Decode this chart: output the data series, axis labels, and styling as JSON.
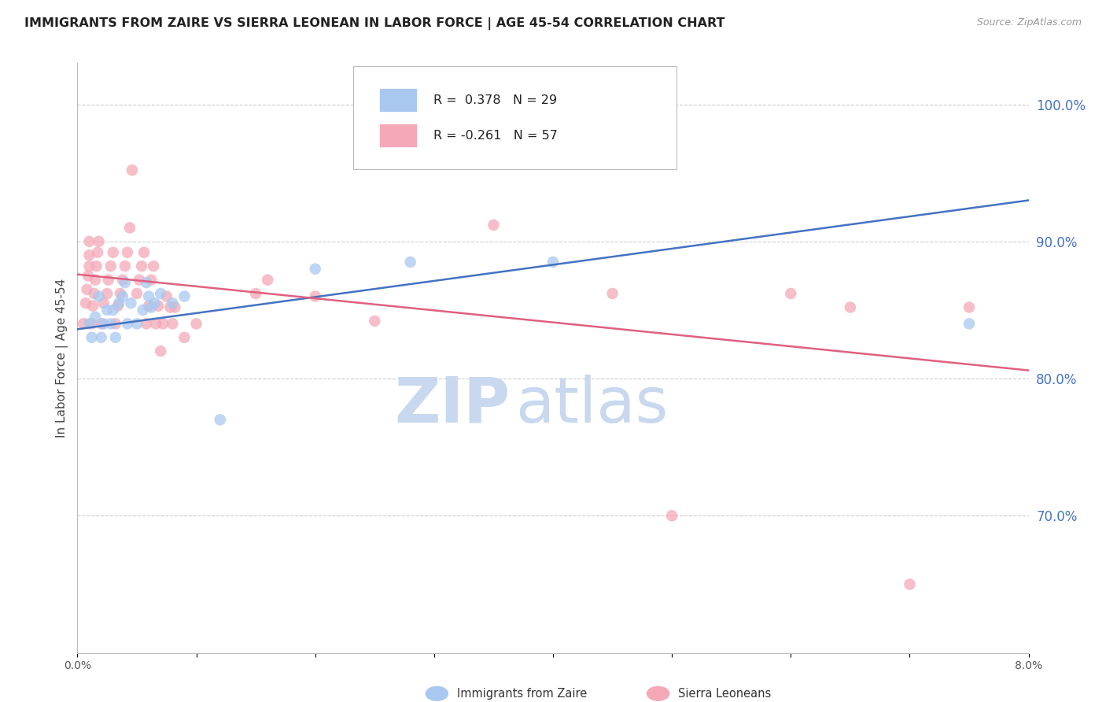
{
  "title": "IMMIGRANTS FROM ZAIRE VS SIERRA LEONEAN IN LABOR FORCE | AGE 45-54 CORRELATION CHART",
  "source": "Source: ZipAtlas.com",
  "ylabel": "In Labor Force | Age 45-54",
  "right_yticks": [
    100.0,
    90.0,
    80.0,
    70.0
  ],
  "xlim": [
    0.0,
    8.0
  ],
  "ylim": [
    0.6,
    1.03
  ],
  "legend_label_blue": "R =  0.378   N = 29",
  "legend_label_pink": "R = -0.261   N = 57",
  "legend_title_blue": "Immigrants from Zaire",
  "legend_title_pink": "Sierra Leoneans",
  "zaire_scatter": [
    [
      0.1,
      0.84
    ],
    [
      0.12,
      0.83
    ],
    [
      0.15,
      0.845
    ],
    [
      0.18,
      0.86
    ],
    [
      0.2,
      0.83
    ],
    [
      0.22,
      0.84
    ],
    [
      0.25,
      0.85
    ],
    [
      0.28,
      0.84
    ],
    [
      0.3,
      0.85
    ],
    [
      0.32,
      0.83
    ],
    [
      0.35,
      0.855
    ],
    [
      0.38,
      0.86
    ],
    [
      0.4,
      0.87
    ],
    [
      0.42,
      0.84
    ],
    [
      0.45,
      0.855
    ],
    [
      0.5,
      0.84
    ],
    [
      0.55,
      0.85
    ],
    [
      0.58,
      0.87
    ],
    [
      0.6,
      0.86
    ],
    [
      0.62,
      0.852
    ],
    [
      0.65,
      0.855
    ],
    [
      0.7,
      0.862
    ],
    [
      0.8,
      0.855
    ],
    [
      0.9,
      0.86
    ],
    [
      1.2,
      0.77
    ],
    [
      2.0,
      0.88
    ],
    [
      2.8,
      0.885
    ],
    [
      4.0,
      0.885
    ],
    [
      7.5,
      0.84
    ]
  ],
  "sierra_scatter": [
    [
      0.05,
      0.84
    ],
    [
      0.07,
      0.855
    ],
    [
      0.08,
      0.865
    ],
    [
      0.09,
      0.875
    ],
    [
      0.1,
      0.882
    ],
    [
      0.1,
      0.89
    ],
    [
      0.1,
      0.9
    ],
    [
      0.12,
      0.84
    ],
    [
      0.13,
      0.853
    ],
    [
      0.14,
      0.862
    ],
    [
      0.15,
      0.872
    ],
    [
      0.16,
      0.882
    ],
    [
      0.17,
      0.892
    ],
    [
      0.18,
      0.9
    ],
    [
      0.2,
      0.84
    ],
    [
      0.22,
      0.855
    ],
    [
      0.25,
      0.862
    ],
    [
      0.26,
      0.872
    ],
    [
      0.28,
      0.882
    ],
    [
      0.3,
      0.892
    ],
    [
      0.32,
      0.84
    ],
    [
      0.34,
      0.853
    ],
    [
      0.36,
      0.862
    ],
    [
      0.38,
      0.872
    ],
    [
      0.4,
      0.882
    ],
    [
      0.42,
      0.892
    ],
    [
      0.44,
      0.91
    ],
    [
      0.46,
      0.952
    ],
    [
      0.5,
      0.862
    ],
    [
      0.52,
      0.872
    ],
    [
      0.54,
      0.882
    ],
    [
      0.56,
      0.892
    ],
    [
      0.58,
      0.84
    ],
    [
      0.6,
      0.853
    ],
    [
      0.62,
      0.872
    ],
    [
      0.64,
      0.882
    ],
    [
      0.66,
      0.84
    ],
    [
      0.68,
      0.853
    ],
    [
      0.7,
      0.82
    ],
    [
      0.72,
      0.84
    ],
    [
      0.75,
      0.86
    ],
    [
      0.78,
      0.852
    ],
    [
      0.8,
      0.84
    ],
    [
      0.82,
      0.852
    ],
    [
      0.9,
      0.83
    ],
    [
      1.0,
      0.84
    ],
    [
      1.5,
      0.862
    ],
    [
      1.6,
      0.872
    ],
    [
      2.0,
      0.86
    ],
    [
      2.5,
      0.842
    ],
    [
      3.5,
      0.912
    ],
    [
      4.5,
      0.862
    ],
    [
      5.0,
      0.7
    ],
    [
      6.0,
      0.862
    ],
    [
      6.5,
      0.852
    ],
    [
      7.0,
      0.65
    ],
    [
      7.5,
      0.852
    ]
  ],
  "zaire_line_x0": 0.0,
  "zaire_line_x1": 8.0,
  "zaire_line_y0": 0.836,
  "zaire_line_y1": 0.93,
  "sierra_line_x0": 0.0,
  "sierra_line_x1": 8.0,
  "sierra_line_y0": 0.876,
  "sierra_line_y1": 0.806,
  "scatter_size": 110,
  "zaire_color": "#A8C8F0",
  "sierra_color": "#F4A8B8",
  "line_blue": "#4472C4",
  "line_pink": "#E06080",
  "background_color": "#FFFFFF",
  "grid_color": "#CCCCCC",
  "watermark_zip": "ZIP",
  "watermark_atlas": "atlas",
  "watermark_color": "#C8D8EE",
  "title_fontsize": 11.5,
  "axis_label_fontsize": 11,
  "tick_fontsize": 10,
  "right_tick_color": "#4472C4"
}
